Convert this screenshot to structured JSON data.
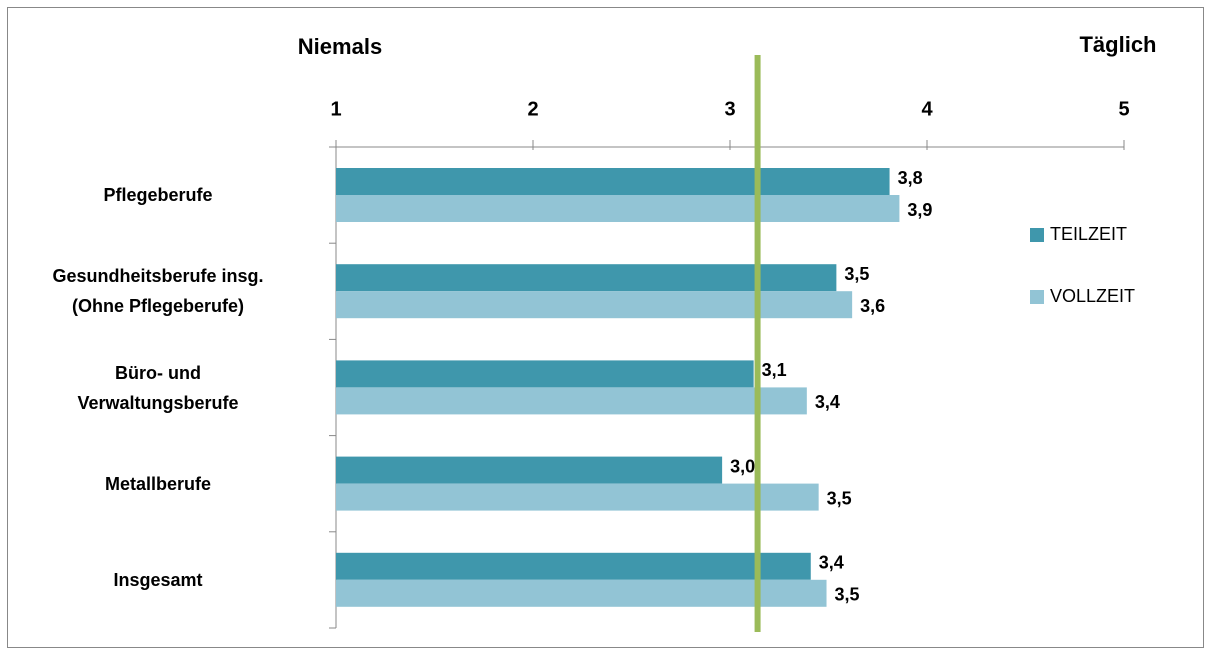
{
  "chart_data": {
    "type": "hbar",
    "title_left": "Niemals",
    "title_right": "Täglich",
    "categories": [
      "Pflegeberufe",
      "Gesundheitsberufe insg.\n(Ohne Pflegeberufe)",
      "Büro- und\nVerwaltungsberufe",
      "Metallberufe",
      "Insgesamt"
    ],
    "series": [
      {
        "name": "TEILZEIT",
        "color": "#3f97ac",
        "values": [
          3.81,
          3.54,
          3.12,
          2.96,
          3.41
        ],
        "value_labels": [
          "3,8",
          "3,5",
          "3,1",
          "3,0",
          "3,4"
        ]
      },
      {
        "name": "VOLLZEIT",
        "color": "#92c4d5",
        "values": [
          3.86,
          3.62,
          3.39,
          3.45,
          3.49
        ],
        "value_labels": [
          "3,9",
          "3,6",
          "3,4",
          "3,5",
          "3,5"
        ]
      }
    ],
    "xlim": [
      1,
      5
    ],
    "xticks": [
      1,
      2,
      3,
      4,
      5
    ],
    "reference_line": {
      "value": 3.14,
      "color": "#9bbb59"
    },
    "legend": "right"
  }
}
